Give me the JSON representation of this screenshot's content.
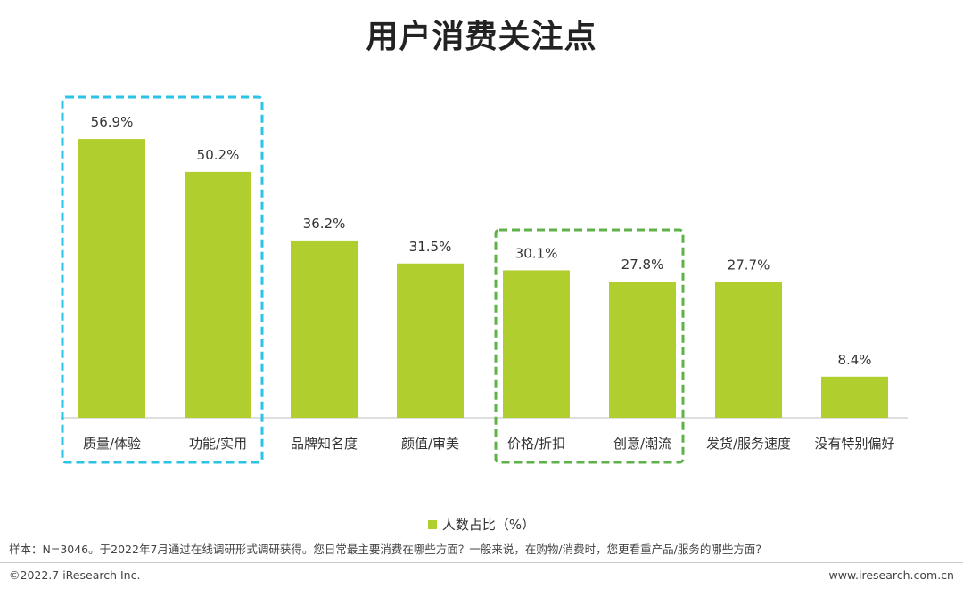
{
  "chart_data": {
    "type": "bar",
    "title": "用户消费关注点",
    "categories": [
      "质量/体验",
      "功能/实用",
      "品牌知名度",
      "颜值/审美",
      "价格/折扣",
      "创意/潮流",
      "发货/服务速度",
      "没有特别偏好"
    ],
    "series": [
      {
        "name": "人数占比（%）",
        "values": [
          56.9,
          50.2,
          36.2,
          31.5,
          30.1,
          27.8,
          27.7,
          8.4
        ],
        "labels": [
          "56.9%",
          "50.2%",
          "36.2%",
          "31.5%",
          "30.1%",
          "27.8%",
          "27.7%",
          "8.4%"
        ]
      }
    ],
    "ylim": [
      0,
      65
    ],
    "grid": false,
    "legend": "bottom",
    "highlight_groups": [
      {
        "categories": [
          "质量/体验",
          "功能/实用"
        ],
        "color": "#2bc3e6",
        "style": "dashed"
      },
      {
        "categories": [
          "价格/折扣",
          "创意/潮流"
        ],
        "color": "#5fb14a",
        "style": "dashed"
      }
    ]
  },
  "colors": {
    "bar": "#b0cf2e",
    "axis": "#bfbfbf"
  },
  "note": "样本：N=3046。于2022年7月通过在线调研形式调研获得。您日常最主要消费在哪些方面？一般来说，在购物/消费时，您更看重产品/服务的哪些方面？",
  "footer": {
    "copyright": "©2022.7 iResearch Inc.",
    "website": "www.iresearch.com.cn"
  }
}
